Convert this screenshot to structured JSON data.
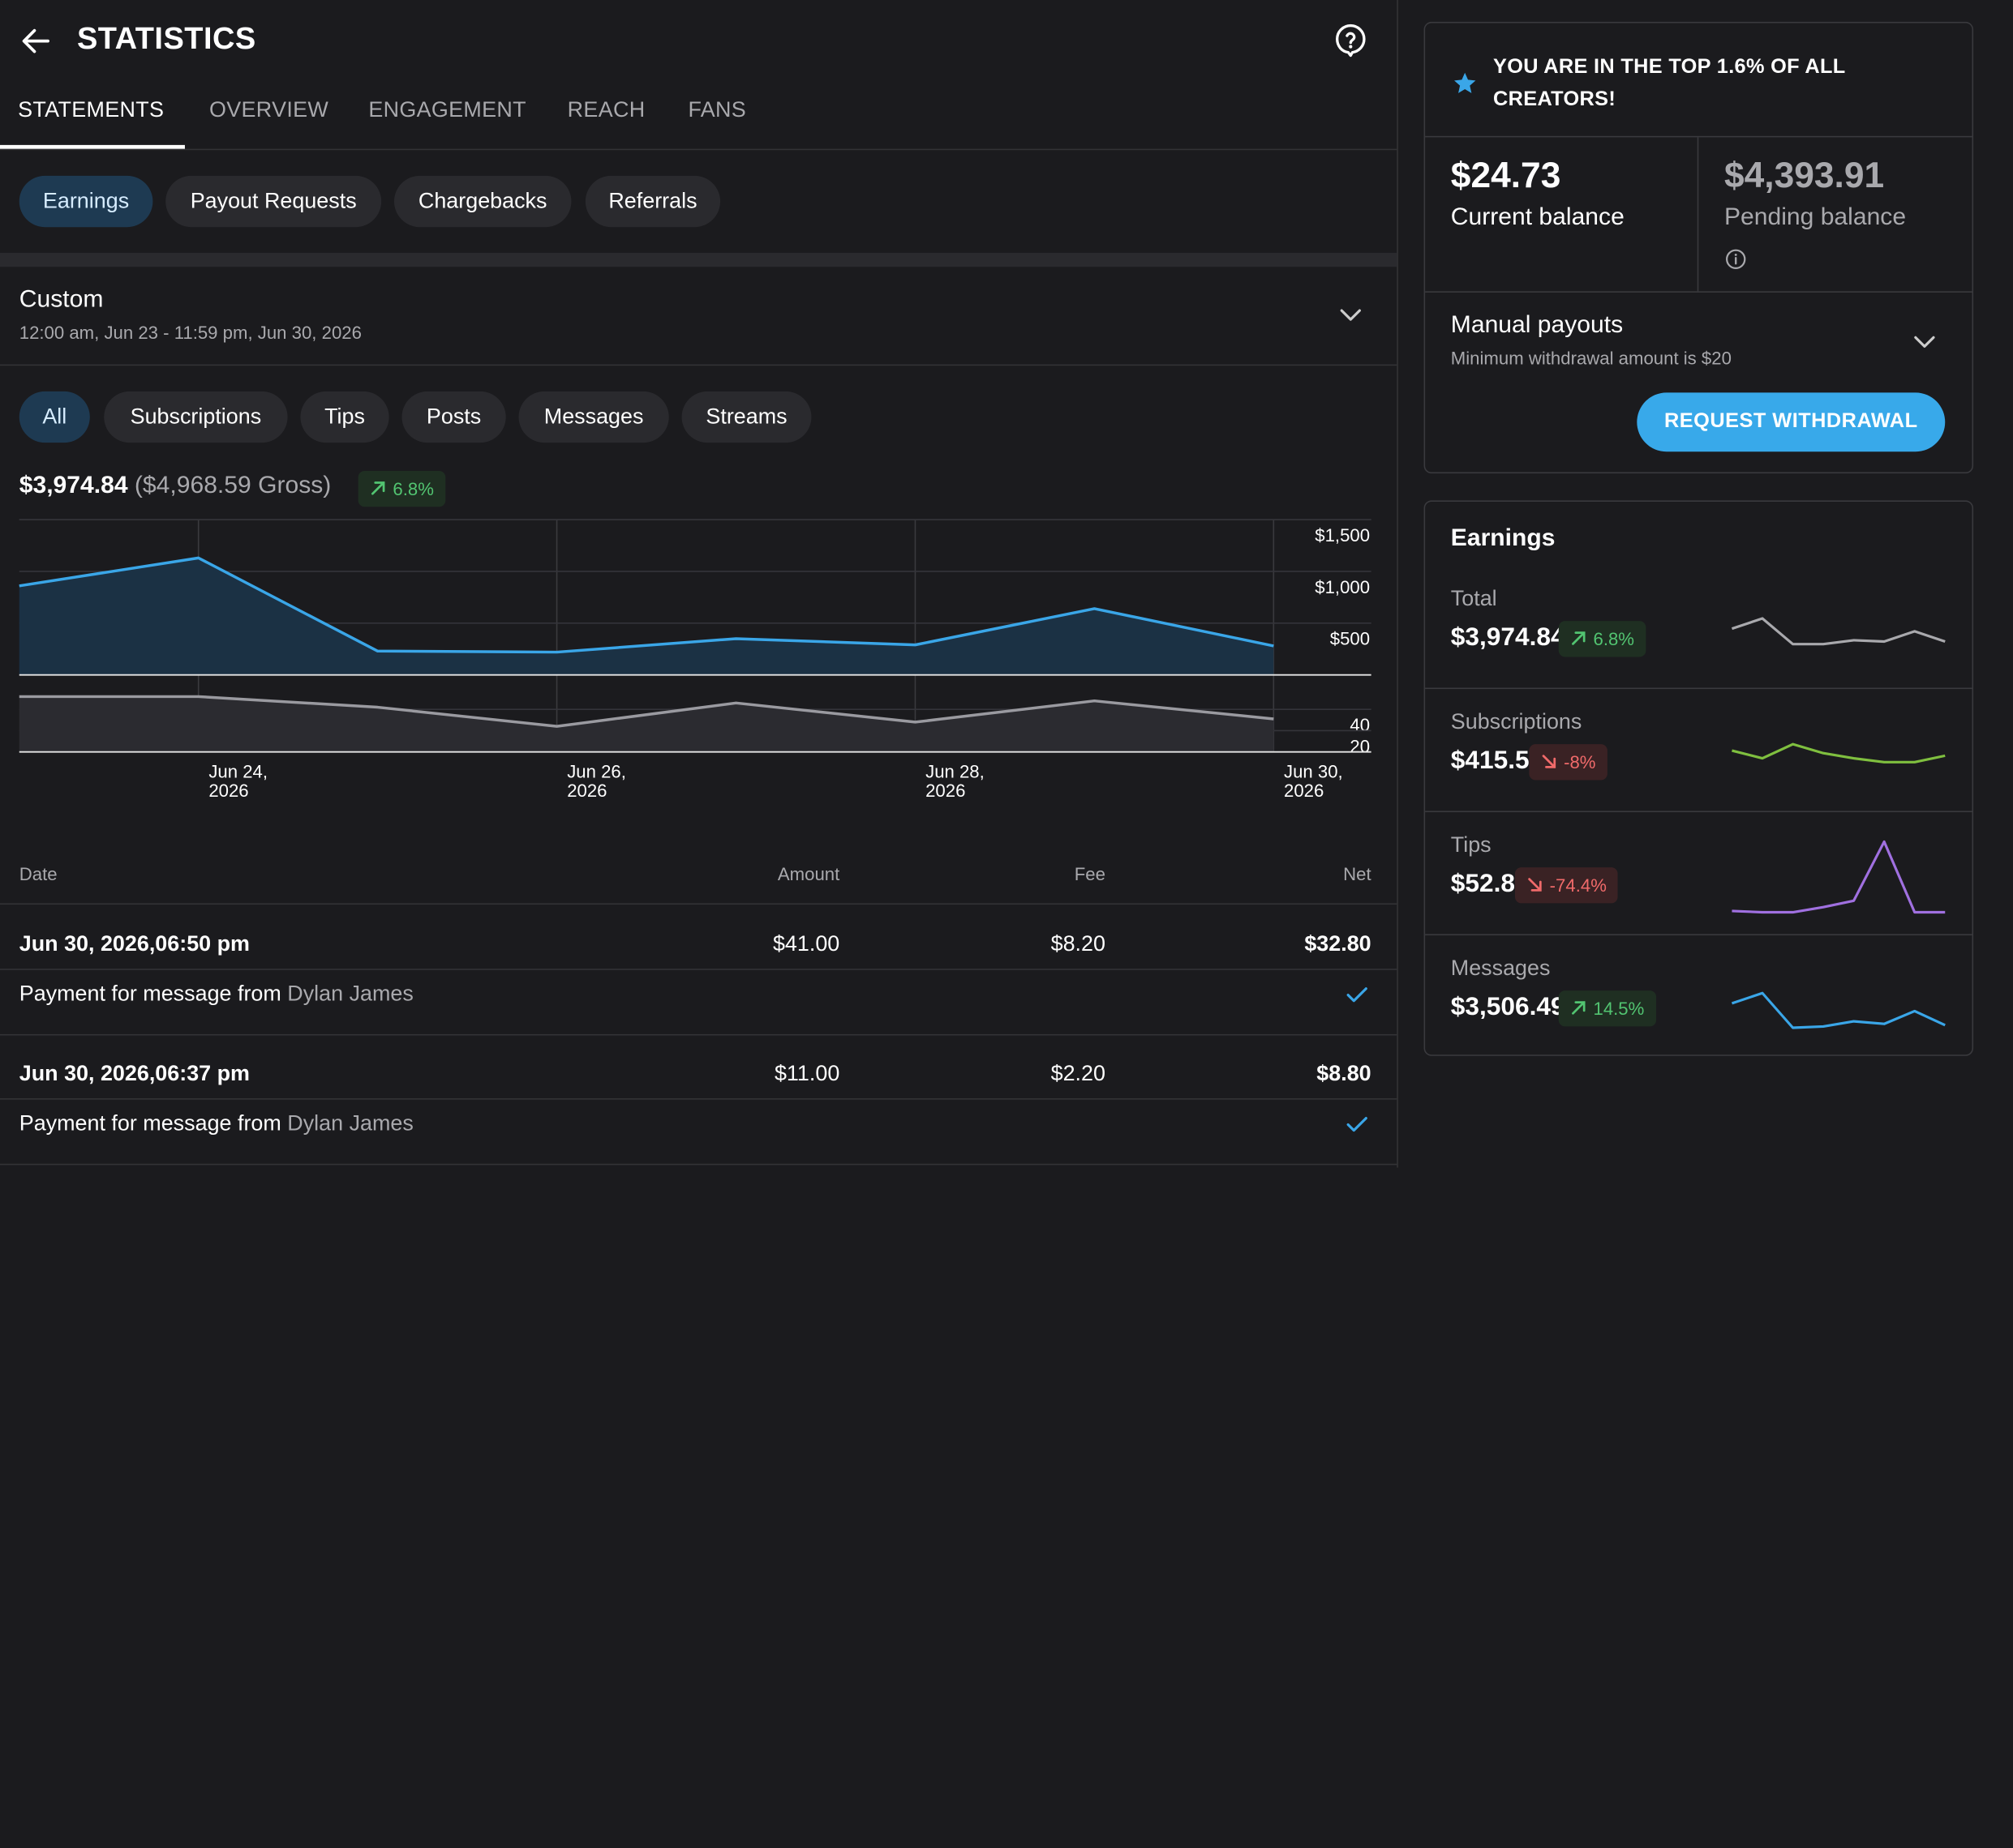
{
  "header": {
    "title": "STATISTICS"
  },
  "tabs": [
    {
      "label": "STATEMENTS",
      "active": true
    },
    {
      "label": "OVERVIEW"
    },
    {
      "label": "ENGAGEMENT"
    },
    {
      "label": "REACH"
    },
    {
      "label": "FANS"
    }
  ],
  "statement_types": [
    {
      "label": "Earnings",
      "active": true
    },
    {
      "label": "Payout Requests"
    },
    {
      "label": "Chargebacks"
    },
    {
      "label": "Referrals"
    }
  ],
  "period": {
    "label": "Custom",
    "range": "12:00 am, Jun 23 - 11:59 pm, Jun 30, 2026"
  },
  "filters": [
    {
      "label": "All",
      "active": true
    },
    {
      "label": "Subscriptions"
    },
    {
      "label": "Tips"
    },
    {
      "label": "Posts"
    },
    {
      "label": "Messages"
    },
    {
      "label": "Streams"
    }
  ],
  "summary": {
    "net": "$3,974.84",
    "gross": "($4,968.59 Gross)",
    "change": "6.8%"
  },
  "chart_data": {
    "type": "line",
    "x": [
      "Jun 23, 2026",
      "Jun 24, 2026",
      "Jun 25, 2026",
      "Jun 26, 2026",
      "Jun 27, 2026",
      "Jun 28, 2026",
      "Jun 29, 2026",
      "Jun 30, 2026"
    ],
    "x_tick_labels": [
      {
        "line1": "Jun 24,",
        "line2": "2026"
      },
      {
        "line1": "Jun 26,",
        "line2": "2026"
      },
      {
        "line1": "Jun 28,",
        "line2": "2026"
      },
      {
        "line1": "Jun 30,",
        "line2": "2026"
      }
    ],
    "panels": [
      {
        "series": [
          {
            "values": [
              860,
              1130,
              230,
              220,
              350,
              290,
              640,
              280
            ],
            "color": "#3aa6e8"
          }
        ],
        "ylim": [
          0,
          1500
        ],
        "y_tick_labels": [
          "$1,500",
          "$1,000",
          "$500"
        ]
      },
      {
        "series": [
          {
            "values": [
              52,
              52,
              42,
              24,
              46,
              28,
              48,
              31
            ],
            "color": "#9a9aa0"
          }
        ],
        "ylim": [
          0,
          70
        ],
        "y_tick_labels": [
          "40",
          "20"
        ]
      }
    ],
    "grid": true
  },
  "table": {
    "headers": {
      "date": "Date",
      "amount": "Amount",
      "fee": "Fee",
      "net": "Net"
    },
    "rows": [
      {
        "date": "Jun 30, 2026,06:50 pm",
        "amount": "$41.00",
        "fee": "$8.20",
        "net": "$32.80",
        "desc": "Payment for message from",
        "from": "Dylan James"
      },
      {
        "date": "Jun 30, 2026,06:37 pm",
        "amount": "$11.00",
        "fee": "$2.20",
        "net": "$8.80",
        "desc": "Payment for message from",
        "from": "Dylan James"
      }
    ]
  },
  "sidebar": {
    "banner": "YOU ARE IN THE TOP 1.6% OF ALL CREATORS!",
    "current_balance": {
      "amount": "$24.73",
      "label": "Current balance"
    },
    "pending_balance": {
      "amount": "$4,393.91",
      "label": "Pending balance"
    },
    "payouts": {
      "title": "Manual payouts",
      "subtitle": "Minimum withdrawal amount is $20"
    },
    "withdraw_button": "REQUEST WITHDRAWAL",
    "earnings": {
      "title": "Earnings",
      "items": [
        {
          "label": "Total",
          "value": "$3,974.84",
          "change": "6.8%",
          "direction": "up",
          "color": "#a9a9ad",
          "spark": [
            3.1,
            3.9,
            1.9,
            1.9,
            2.2,
            2.1,
            2.9,
            2.1
          ]
        },
        {
          "label": "Subscriptions",
          "value": "$415.55",
          "change": "-8%",
          "direction": "down",
          "color": "#7fbf3f",
          "spark": [
            3.2,
            2.6,
            3.7,
            3.0,
            2.6,
            2.3,
            2.3,
            2.8
          ]
        },
        {
          "label": "Tips",
          "value": "$52.80",
          "change": "-74.4%",
          "direction": "down",
          "color": "#a070e0",
          "spark": [
            0.3,
            0.2,
            0.2,
            0.6,
            1.1,
            5.7,
            0.2,
            0.2
          ]
        },
        {
          "label": "Messages",
          "value": "$3,506.49",
          "change": "14.5%",
          "direction": "up",
          "color": "#3aa6e8",
          "spark": [
            2.7,
            3.5,
            0.8,
            0.9,
            1.3,
            1.1,
            2.1,
            1.0
          ]
        }
      ]
    }
  }
}
